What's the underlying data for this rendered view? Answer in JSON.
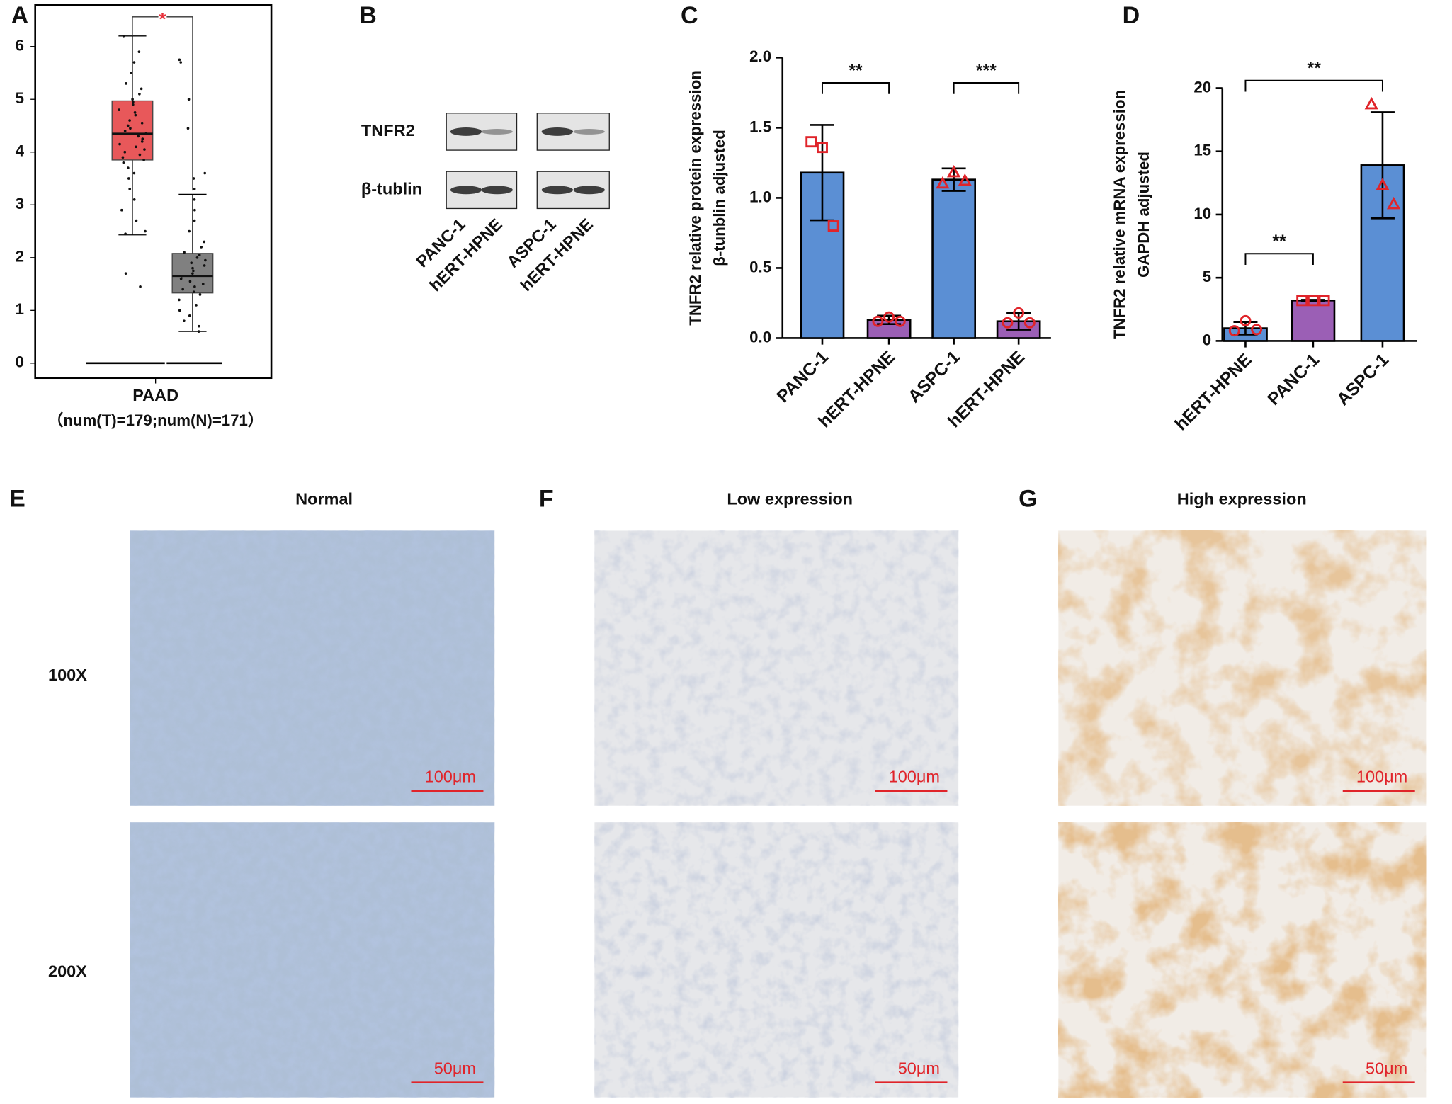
{
  "chart_data": [
    {
      "type": "box",
      "panel": "A",
      "categories": [
        "PAAD"
      ],
      "subtitle": "（num(T)=179;num(N)=171）",
      "ylim": [
        -0.28,
        6.79
      ],
      "yticks": [
        0,
        1,
        2,
        3,
        4,
        5,
        6
      ],
      "series": [
        {
          "color": "#e8585a",
          "whisker_low": 2.43,
          "q1": 3.85,
          "median": 4.35,
          "q3": 4.97,
          "whisker_high": 6.2,
          "lower_line": 0,
          "points": [
            6.2,
            5.9,
            5.7,
            5.5,
            5.3,
            5.2,
            5.1,
            5.0,
            4.95,
            4.9,
            4.8,
            4.75,
            4.7,
            4.6,
            4.55,
            4.5,
            4.45,
            4.4,
            4.35,
            4.3,
            4.25,
            4.2,
            4.15,
            4.1,
            4.05,
            4.0,
            3.95,
            3.9,
            3.85,
            3.8,
            3.7,
            3.6,
            3.5,
            3.3,
            3.1,
            2.9,
            2.7,
            2.5,
            2.45,
            1.7,
            1.45
          ]
        },
        {
          "color": "#808080",
          "whisker_low": 0.6,
          "q1": 1.33,
          "median": 1.65,
          "q3": 2.08,
          "whisker_high": 3.2,
          "lower_line": 0,
          "points": [
            5.75,
            5.7,
            5.0,
            4.45,
            3.6,
            3.5,
            3.3,
            3.1,
            2.9,
            2.7,
            2.5,
            2.3,
            2.2,
            2.1,
            2.05,
            2.0,
            1.95,
            1.9,
            1.85,
            1.8,
            1.75,
            1.7,
            1.65,
            1.6,
            1.55,
            1.5,
            1.45,
            1.4,
            1.35,
            1.3,
            1.2,
            1.1,
            1.0,
            0.9,
            0.8,
            0.7,
            0.6
          ]
        }
      ],
      "annotations": [
        {
          "text": "*",
          "from": 0,
          "to": 1,
          "color": "#e8303a"
        }
      ]
    },
    {
      "type": "bar",
      "panel": "C",
      "ylabel": [
        "TNFR2 relative protein expression",
        "β-tunblin adjusted"
      ],
      "categories": [
        "PANC-1",
        "hERT-HPNE",
        "ASPC-1",
        "hERT-HPNE"
      ],
      "values": [
        1.18,
        0.13,
        1.13,
        0.12
      ],
      "errors": [
        0.34,
        0.03,
        0.08,
        0.06
      ],
      "colors": [
        "#5b8fd4",
        "#9b5fb5",
        "#5b8fd4",
        "#9b5fb5"
      ],
      "markers": [
        "square",
        "circle",
        "triangle",
        "circle"
      ],
      "marker_color": "#e0242a",
      "points": [
        [
          1.4,
          1.36,
          0.8
        ],
        [
          0.12,
          0.15,
          0.12
        ],
        [
          1.1,
          1.18,
          1.12
        ],
        [
          0.11,
          0.18,
          0.11
        ]
      ],
      "ylim": [
        0,
        2
      ],
      "yticks": [
        {
          "value": 0,
          "label": "0.0"
        },
        0.5,
        {
          "value": 1,
          "label": "1.0"
        },
        1.5,
        {
          "value": 2,
          "label": "2.0"
        }
      ],
      "annotations": [
        {
          "text": "**",
          "from": 0,
          "to": 1,
          "level": 1.82
        },
        {
          "text": "***",
          "from": 2,
          "to": 3,
          "level": 1.82
        }
      ]
    },
    {
      "type": "bar",
      "panel": "D",
      "ylabel": [
        "TNFR2 relative mRNA expression",
        "GAPDH adjusted"
      ],
      "categories": [
        "hERT-HPNE",
        "PANC-1",
        "ASPC-1"
      ],
      "values": [
        1.0,
        3.2,
        13.9
      ],
      "errors": [
        0.5,
        0.05,
        4.2
      ],
      "colors": [
        "#5b8fd4",
        "#9b5fb5",
        "#5b8fd4"
      ],
      "markers": [
        "circle",
        "square",
        "triangle"
      ],
      "marker_color": "#e0242a",
      "points": [
        [
          0.8,
          1.6,
          0.9
        ],
        [
          3.2,
          3.2,
          3.2
        ],
        [
          18.7,
          12.3,
          10.8
        ]
      ],
      "ylim": [
        0,
        20
      ],
      "yticks": [
        0,
        5,
        10,
        15,
        20
      ],
      "annotations": [
        {
          "text": "**",
          "from": 0,
          "to": 2,
          "level": 20.6
        },
        {
          "text": "**",
          "from": 0,
          "to": 1,
          "level": 6.9
        }
      ]
    }
  ],
  "blot": {
    "panel": "B",
    "rows": [
      "TNFR2",
      "β-tublin"
    ],
    "lanes": [
      "PANC-1",
      "hERT-HPNE",
      "ASPC-1",
      "hERT-HPNE"
    ]
  },
  "histology": {
    "rows": [
      "100X",
      "200X"
    ],
    "scale_bars": [
      "100μm",
      "50μm"
    ],
    "panels": [
      {
        "panel": "E",
        "title": "Normal"
      },
      {
        "panel": "F",
        "title": "Low expression"
      },
      {
        "panel": "G",
        "title": "High expression"
      }
    ]
  }
}
